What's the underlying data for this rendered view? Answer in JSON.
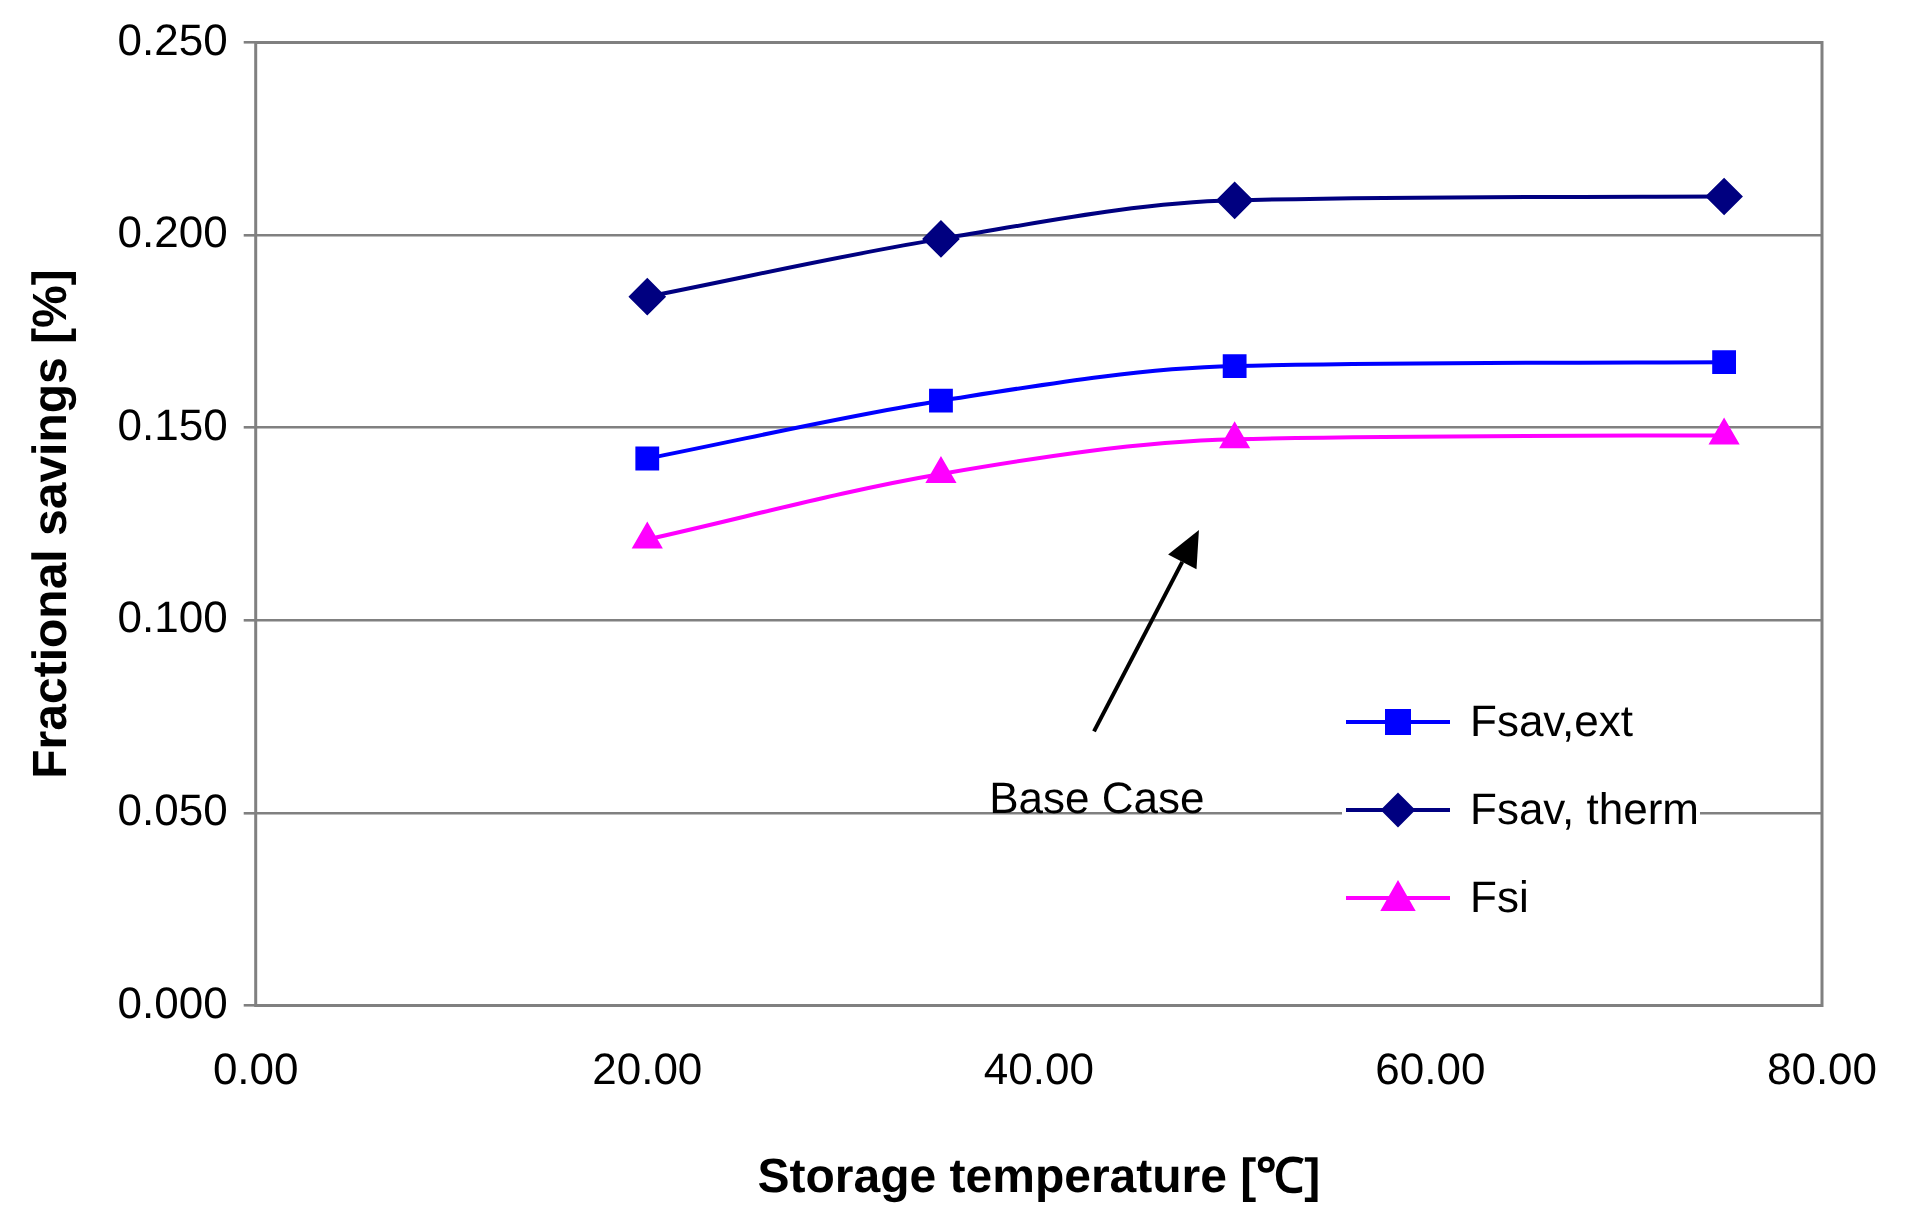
{
  "chart_data": {
    "type": "line",
    "xlabel": "Storage temperature [℃]",
    "ylabel": "Fractional savings [%]",
    "x": [
      20,
      35,
      50,
      75
    ],
    "series": [
      {
        "name": "Fsav,ext",
        "color": "#0000ff",
        "marker": "square",
        "values": [
          0.142,
          0.157,
          0.166,
          0.167
        ]
      },
      {
        "name": "Fsav, therm",
        "color": "#000080",
        "marker": "diamond",
        "values": [
          0.184,
          0.199,
          0.209,
          0.21
        ]
      },
      {
        "name": "Fsi",
        "color": "#ff00ff",
        "marker": "triangle",
        "values": [
          0.121,
          0.138,
          0.147,
          0.148
        ]
      }
    ],
    "xlim": [
      0,
      80
    ],
    "xticks": [
      {
        "value": 0,
        "label": "0.00"
      },
      {
        "value": 20,
        "label": "20.00"
      },
      {
        "value": 40,
        "label": "40.00"
      },
      {
        "value": 60,
        "label": "60.00"
      },
      {
        "value": 80,
        "label": "80.00"
      }
    ],
    "ylim": [
      0,
      0.25
    ],
    "yticks": [
      {
        "value": 0,
        "label": "0.000"
      },
      {
        "value": 0.05,
        "label": "0.050"
      },
      {
        "value": 0.1,
        "label": "0.100"
      },
      {
        "value": 0.15,
        "label": "0.150"
      },
      {
        "value": 0.2,
        "label": "0.200"
      },
      {
        "value": 0.25,
        "label": "0.250"
      }
    ],
    "grid": "y",
    "legend": "right",
    "annotations": [
      "Base Case"
    ]
  }
}
